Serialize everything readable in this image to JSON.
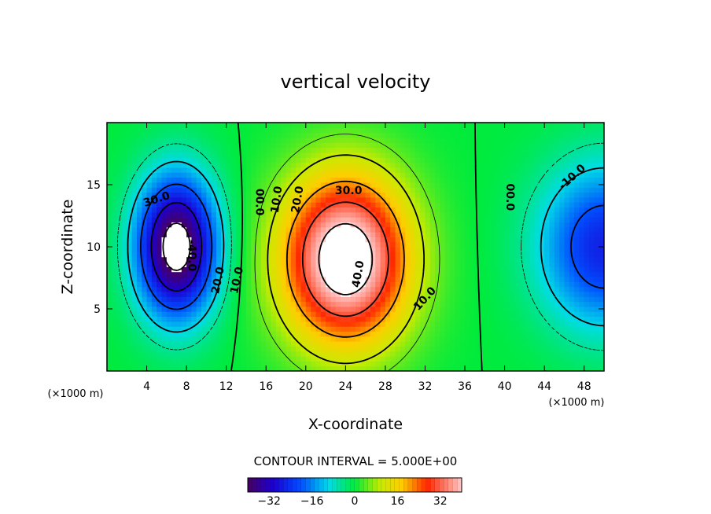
{
  "chart_data": {
    "type": "heatmap",
    "title": "vertical velocity",
    "xlabel": "X-coordinate",
    "ylabel": "Z-coordinate",
    "x_unit": "(×1000 m)",
    "xlim": [
      0,
      50
    ],
    "ylim": [
      0,
      20
    ],
    "x_ticks": [
      4,
      8,
      12,
      16,
      20,
      24,
      28,
      32,
      36,
      40,
      44,
      48
    ],
    "y_ticks": [
      5,
      10,
      15
    ],
    "contour_interval_text": "CONTOUR INTERVAL = 5.000E+00",
    "contour_interval": 5.0,
    "colorbar": {
      "range": [
        -40,
        40
      ],
      "ticks": [
        -32,
        -16,
        0,
        16,
        32
      ]
    },
    "contour_labels": [
      {
        "text": "30.0",
        "x": 5.0,
        "z": 13.8,
        "rot": -18
      },
      {
        "text": "-40.0",
        "x": 8.5,
        "z": 9.3,
        "rot": 90
      },
      {
        "text": "20.0",
        "x": 11.2,
        "z": 7.3,
        "rot": -78
      },
      {
        "text": "10.0",
        "x": 13.1,
        "z": 7.3,
        "rot": -78
      },
      {
        "text": "00.0",
        "x": 15.3,
        "z": 13.6,
        "rot": 90
      },
      {
        "text": "10.0",
        "x": 17.1,
        "z": 13.8,
        "rot": -82
      },
      {
        "text": "20.0",
        "x": 19.2,
        "z": 13.8,
        "rot": -80
      },
      {
        "text": "30.0",
        "x": 24.3,
        "z": 14.5,
        "rot": 0
      },
      {
        "text": "40.0",
        "x": 25.3,
        "z": 7.8,
        "rot": -80
      },
      {
        "text": "10.0",
        "x": 32.0,
        "z": 5.8,
        "rot": -48
      },
      {
        "text": "00.0",
        "x": 40.5,
        "z": 14.0,
        "rot": 90
      },
      {
        "text": "-10.0",
        "x": 46.8,
        "z": 15.6,
        "rot": -42
      }
    ],
    "field": {
      "cells": [
        {
          "name": "downdraft",
          "x": 7.0,
          "z": 10.0,
          "amp": -45,
          "sx": 4.0,
          "sz": 5.6
        },
        {
          "name": "updraft",
          "x": 24.0,
          "z": 9.0,
          "amp": 48,
          "sx": 6.3,
          "sz": 6.7
        },
        {
          "name": "right-downdraft",
          "x": 50.0,
          "z": 10.0,
          "amp": -26,
          "sx": 6.5,
          "sz": 6.5
        }
      ]
    }
  }
}
